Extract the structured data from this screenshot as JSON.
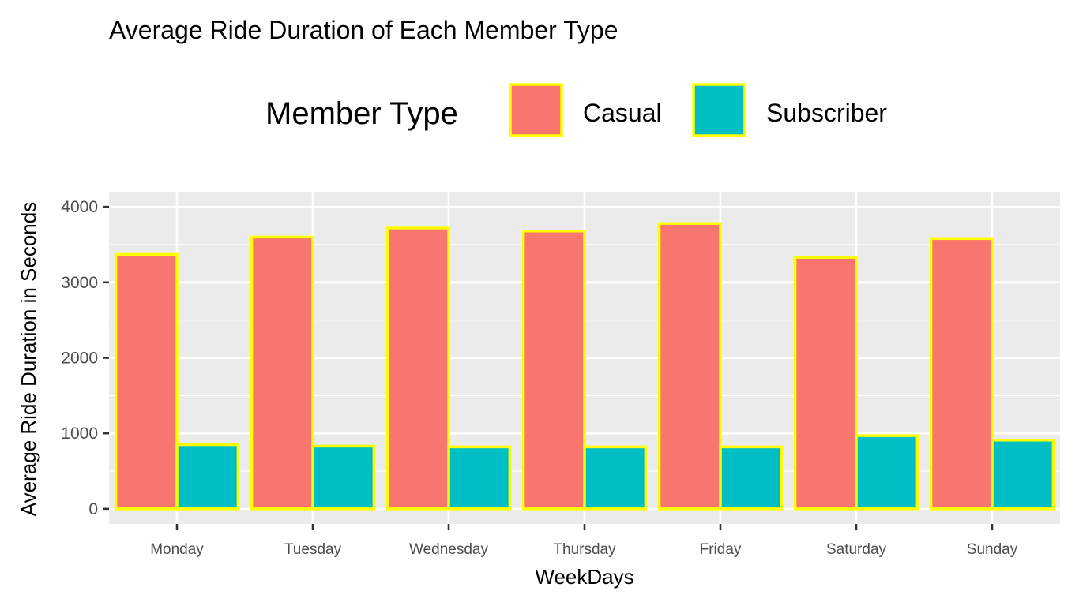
{
  "chart_data": {
    "type": "bar",
    "title": "Average Ride Duration of Each Member Type",
    "xlabel": "WeekDays",
    "ylabel": "Average Ride Duration in Seconds",
    "categories": [
      "Monday",
      "Tuesday",
      "Wednesday",
      "Thursday",
      "Friday",
      "Saturday",
      "Sunday"
    ],
    "legend": {
      "title": "Member Type",
      "position": "top"
    },
    "series": [
      {
        "name": "Casual",
        "color": "#f8766d",
        "values": [
          3370,
          3600,
          3720,
          3680,
          3780,
          3330,
          3580
        ]
      },
      {
        "name": "Subscriber",
        "color": "#00bfc4",
        "values": [
          850,
          830,
          820,
          820,
          820,
          970,
          910
        ]
      }
    ],
    "bar_outline_color": "#ffff00",
    "panel_background": "#ebebeb",
    "grid": true,
    "ylim": [
      -200,
      4200
    ],
    "yticks": [
      0,
      1000,
      2000,
      3000,
      4000
    ],
    "ytick_labels": [
      "0",
      "1000",
      "2000",
      "3000",
      "4000"
    ]
  }
}
